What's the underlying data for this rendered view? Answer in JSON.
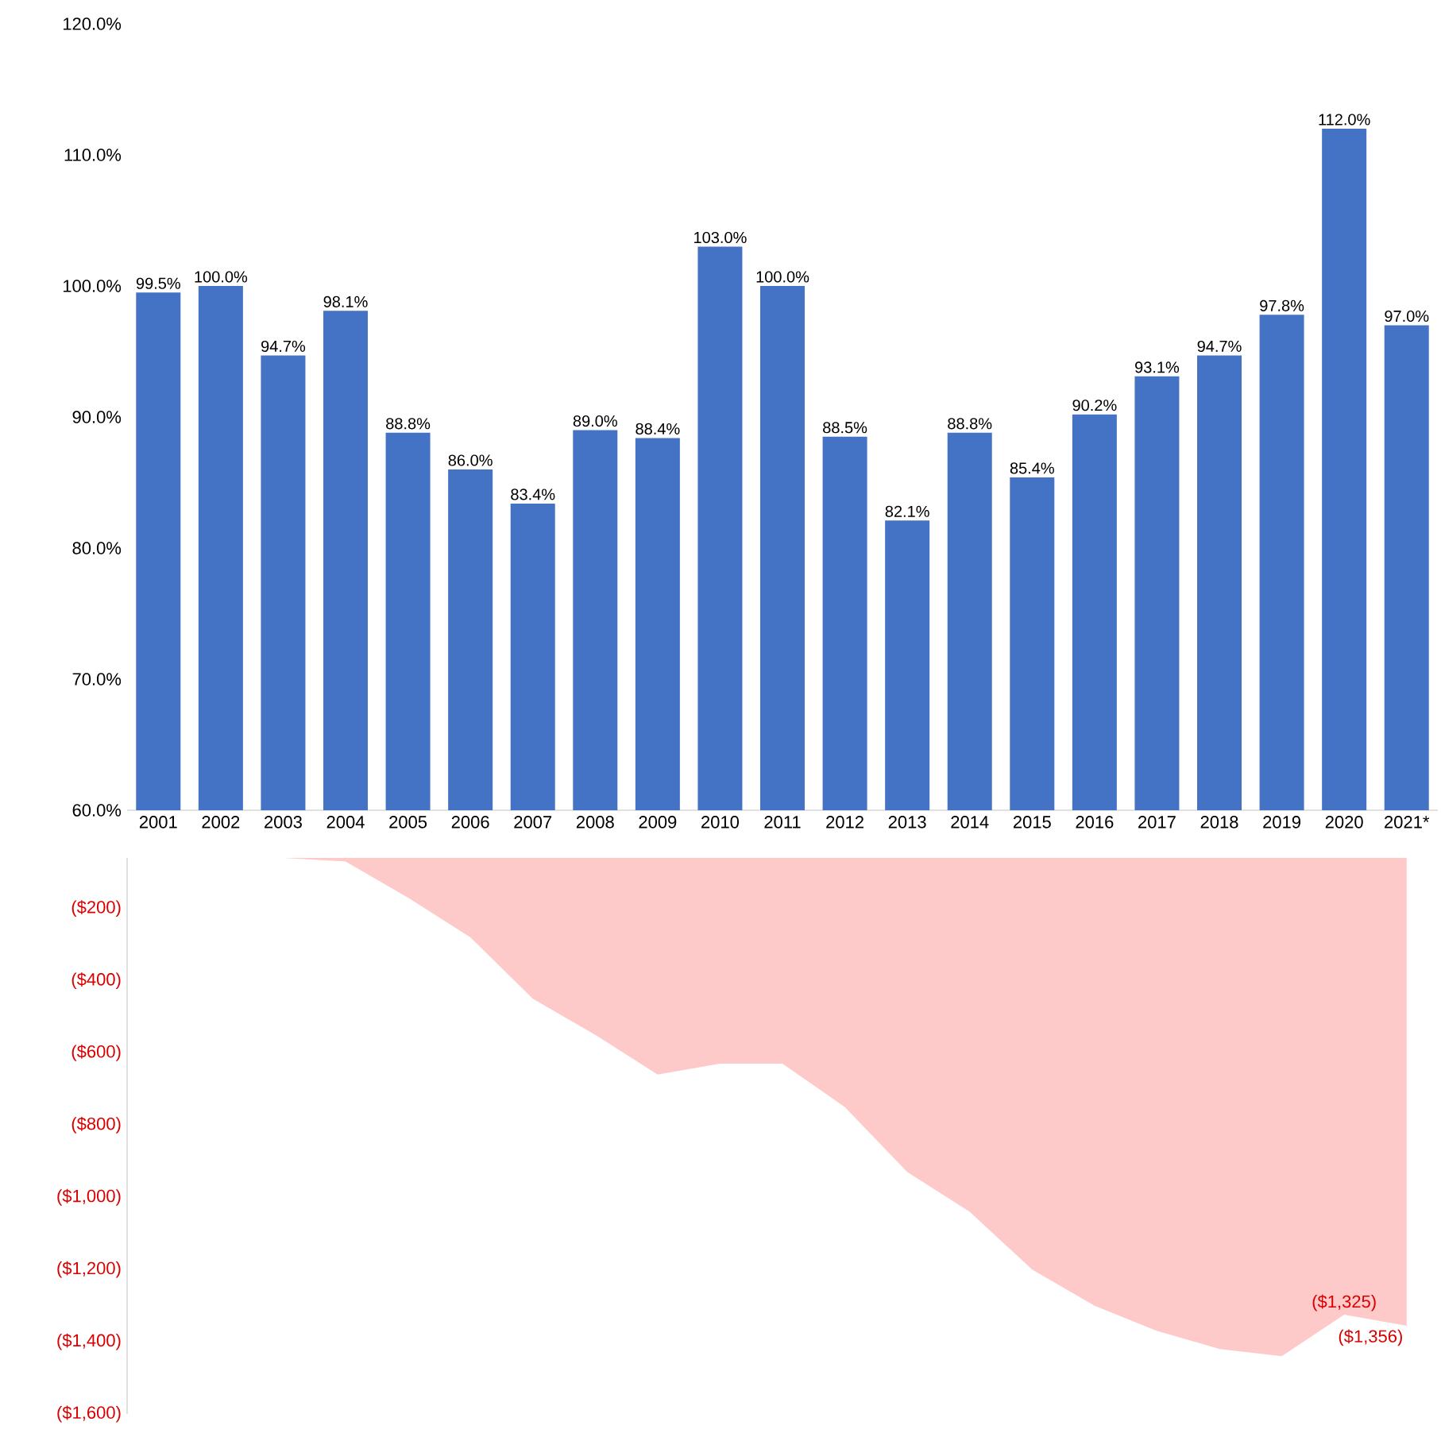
{
  "chart_data": [
    {
      "type": "bar",
      "categories": [
        "2001",
        "2002",
        "2003",
        "2004",
        "2005",
        "2006",
        "2007",
        "2008",
        "2009",
        "2010",
        "2011",
        "2012",
        "2013",
        "2014",
        "2015",
        "2016",
        "2017",
        "2018",
        "2019",
        "2020",
        "2021*"
      ],
      "values": [
        99.5,
        100.0,
        94.7,
        98.1,
        88.8,
        86.0,
        83.4,
        89.0,
        88.4,
        103.0,
        100.0,
        88.5,
        82.1,
        88.8,
        85.4,
        90.2,
        93.1,
        94.7,
        97.8,
        112.0,
        97.0
      ],
      "value_labels": [
        "99.5%",
        "100.0%",
        "94.7%",
        "98.1%",
        "88.8%",
        "86.0%",
        "83.4%",
        "89.0%",
        "88.4%",
        "103.0%",
        "100.0%",
        "88.5%",
        "82.1%",
        "88.8%",
        "85.4%",
        "90.2%",
        "93.1%",
        "94.7%",
        "97.8%",
        "112.0%",
        "97.0%"
      ],
      "color": "#4472c4",
      "ylim": [
        60,
        120
      ],
      "yticks": [
        {
          "value": 60,
          "label": "60.0%"
        },
        {
          "value": 70,
          "label": "70.0%"
        },
        {
          "value": 80,
          "label": "80.0%"
        },
        {
          "value": 90,
          "label": "90.0%"
        },
        {
          "value": 100,
          "label": "100.0%"
        },
        {
          "value": 110,
          "label": "110.0%"
        },
        {
          "value": 120,
          "label": "120.0%"
        }
      ],
      "grid": false
    },
    {
      "type": "area",
      "categories": [
        null,
        null,
        null,
        null,
        null,
        null,
        null,
        null,
        null,
        null,
        null,
        null,
        null,
        null,
        null,
        null,
        null,
        null,
        null,
        null,
        null
      ],
      "values": [
        null,
        null,
        -60,
        -70,
        -170,
        -280,
        -450,
        -550,
        -660,
        -630,
        -630,
        -750,
        -930,
        -1040,
        -1200,
        -1300,
        -1370,
        -1420,
        -1440,
        -1325,
        -1356
      ],
      "value_labels": [
        null,
        null,
        null,
        null,
        null,
        null,
        null,
        null,
        null,
        null,
        null,
        null,
        null,
        null,
        null,
        null,
        null,
        null,
        null,
        "($1,325)",
        "($1,356)"
      ],
      "color": "#fdc9c9",
      "ylim": [
        -1600,
        -60
      ],
      "yticks": [
        {
          "value": -200,
          "label": "($200)"
        },
        {
          "value": -400,
          "label": "($400)"
        },
        {
          "value": -600,
          "label": "($600)"
        },
        {
          "value": -800,
          "label": "($800)"
        },
        {
          "value": -1000,
          "label": "($1,000)"
        },
        {
          "value": -1200,
          "label": "($1,200)"
        },
        {
          "value": -1400,
          "label": "($1,400)"
        },
        {
          "value": -1600,
          "label": "($1,600)"
        }
      ],
      "tick_labels": "y"
    }
  ]
}
